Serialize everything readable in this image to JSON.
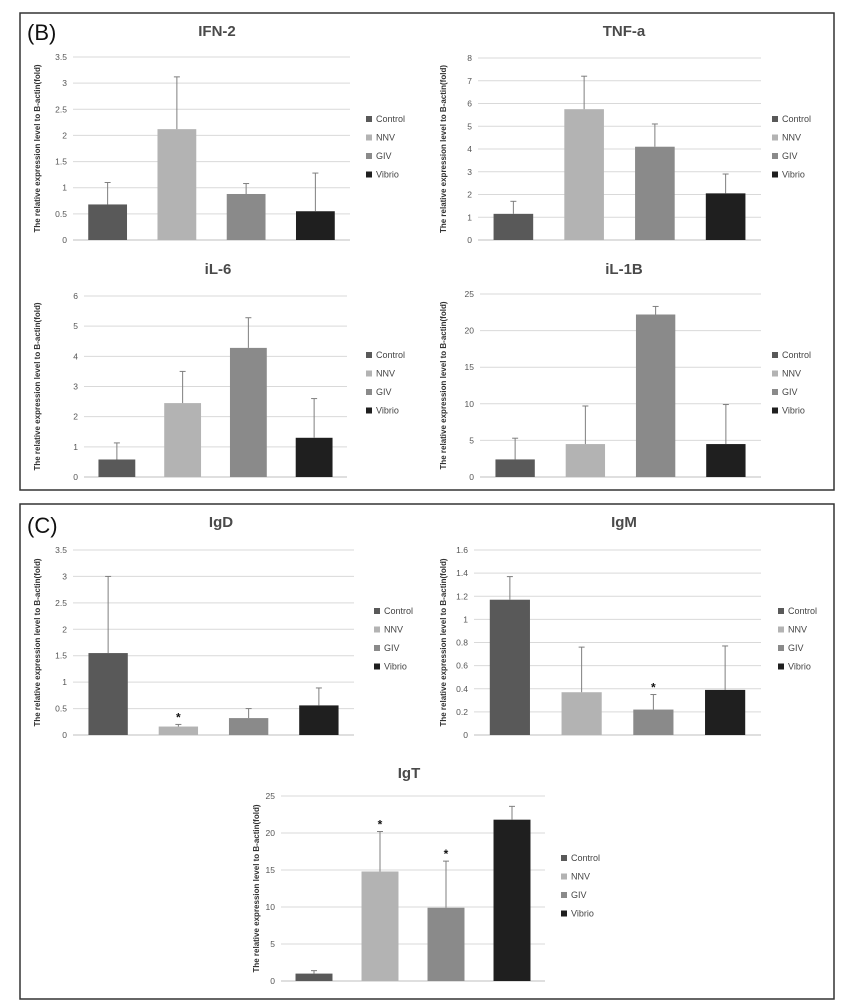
{
  "panels": {
    "B": {
      "label": "(B)"
    },
    "C": {
      "label": "(C)"
    }
  },
  "colors": {
    "Control": "#595959",
    "NNV": "#b3b3b3",
    "GIV": "#8a8a8a",
    "Vibrio": "#1f1f1f",
    "grid": "#d9d9d9",
    "axis": "#bfbfbf",
    "error": "#7f7f7f"
  },
  "chart_data": [
    {
      "id": "ifn2",
      "panel": "B",
      "type": "bar",
      "title": "IFN-2",
      "ylabel": "The relative expression level to B-actin(fold)",
      "categories": [
        "Control",
        "NNV",
        "GIV",
        "Vibrio"
      ],
      "values": [
        0.68,
        2.12,
        0.88,
        0.55
      ],
      "errors": [
        0.42,
        1.0,
        0.2,
        0.73
      ],
      "significance": [
        "",
        "",
        "",
        ""
      ],
      "ylim": [
        0,
        3.5
      ],
      "yticks": [
        "0",
        "0.5",
        "1",
        "1.5",
        "2",
        "2.5",
        "3",
        "3.5"
      ],
      "legend": [
        "Control",
        "NNV",
        "GIV",
        "Vibrio"
      ]
    },
    {
      "id": "tnfa",
      "panel": "B",
      "type": "bar",
      "title": "TNF-a",
      "ylabel": "The relative expression level to B-actin(fold)",
      "categories": [
        "Control",
        "NNV",
        "GIV",
        "Vibrio"
      ],
      "values": [
        1.15,
        5.75,
        4.1,
        2.05
      ],
      "errors": [
        0.55,
        1.45,
        1.0,
        0.85
      ],
      "significance": [
        "",
        "",
        "",
        ""
      ],
      "ylim": [
        0,
        8
      ],
      "yticks": [
        "0",
        "1",
        "2",
        "3",
        "4",
        "5",
        "6",
        "7",
        "8"
      ],
      "legend": [
        "Control",
        "NNV",
        "GIV",
        "Vibrio"
      ]
    },
    {
      "id": "il6",
      "panel": "B",
      "type": "bar",
      "title": "iL-6",
      "ylabel": "The relative expression level to B-actin(fold)",
      "categories": [
        "Control",
        "NNV",
        "GIV",
        "Vibrio"
      ],
      "values": [
        0.58,
        2.45,
        4.28,
        1.3
      ],
      "errors": [
        0.55,
        1.05,
        1.0,
        1.3
      ],
      "significance": [
        "",
        "",
        "",
        ""
      ],
      "ylim": [
        0,
        6
      ],
      "yticks": [
        "0",
        "1",
        "2",
        "3",
        "4",
        "5",
        "6"
      ],
      "legend": [
        "Control",
        "NNV",
        "GIV",
        "Vibrio"
      ]
    },
    {
      "id": "il1b",
      "panel": "B",
      "type": "bar",
      "title": "iL-1B",
      "ylabel": "The relative expression level to B-actin(fold)",
      "categories": [
        "Control",
        "NNV",
        "GIV",
        "Vibrio"
      ],
      "values": [
        2.4,
        4.5,
        22.2,
        4.5
      ],
      "errors": [
        2.9,
        5.2,
        1.1,
        5.4
      ],
      "significance": [
        "",
        "",
        "",
        ""
      ],
      "ylim": [
        0,
        25
      ],
      "yticks": [
        "0",
        "5",
        "10",
        "15",
        "20",
        "25"
      ],
      "legend": [
        "Control",
        "NNV",
        "GIV",
        "Vibrio"
      ]
    },
    {
      "id": "igd",
      "panel": "C",
      "type": "bar",
      "title": "IgD",
      "ylabel": "The relative expression level to B-actin(fold)",
      "categories": [
        "Control",
        "NNV",
        "GIV",
        "Vibrio"
      ],
      "values": [
        1.55,
        0.16,
        0.32,
        0.56
      ],
      "errors": [
        1.45,
        0.04,
        0.18,
        0.33
      ],
      "significance": [
        "",
        "*",
        "",
        ""
      ],
      "ylim": [
        0,
        3.5
      ],
      "yticks": [
        "0",
        "0.5",
        "1",
        "1.5",
        "2",
        "2.5",
        "3",
        "3.5"
      ],
      "legend": [
        "Control",
        "NNV",
        "GIV",
        "Vibrio"
      ]
    },
    {
      "id": "igm",
      "panel": "C",
      "type": "bar",
      "title": "IgM",
      "ylabel": "The relative expression level to B-actin(fold)",
      "categories": [
        "Control",
        "NNV",
        "GIV",
        "Vibrio"
      ],
      "values": [
        1.17,
        0.37,
        0.22,
        0.39
      ],
      "errors": [
        0.2,
        0.39,
        0.13,
        0.38
      ],
      "significance": [
        "",
        "",
        "*",
        ""
      ],
      "ylim": [
        0,
        1.6
      ],
      "yticks": [
        "0",
        "0.2",
        "0.4",
        "0.6",
        "0.8",
        "1",
        "1.2",
        "1.4",
        "1.6"
      ],
      "legend": [
        "Control",
        "NNV",
        "GIV",
        "Vibrio"
      ]
    },
    {
      "id": "igt",
      "panel": "C",
      "type": "bar",
      "title": "IgT",
      "ylabel": "The relative expression level to B-actin(fold)",
      "categories": [
        "Control",
        "NNV",
        "GIV",
        "Vibrio"
      ],
      "values": [
        1.0,
        14.8,
        9.9,
        21.8
      ],
      "errors": [
        0.4,
        5.4,
        6.3,
        1.8
      ],
      "significance": [
        "",
        "*",
        "*",
        ""
      ],
      "ylim": [
        0,
        25
      ],
      "yticks": [
        "0",
        "5",
        "10",
        "15",
        "20",
        "25"
      ],
      "legend": [
        "Control",
        "NNV",
        "GIV",
        "Vibrio"
      ]
    }
  ]
}
